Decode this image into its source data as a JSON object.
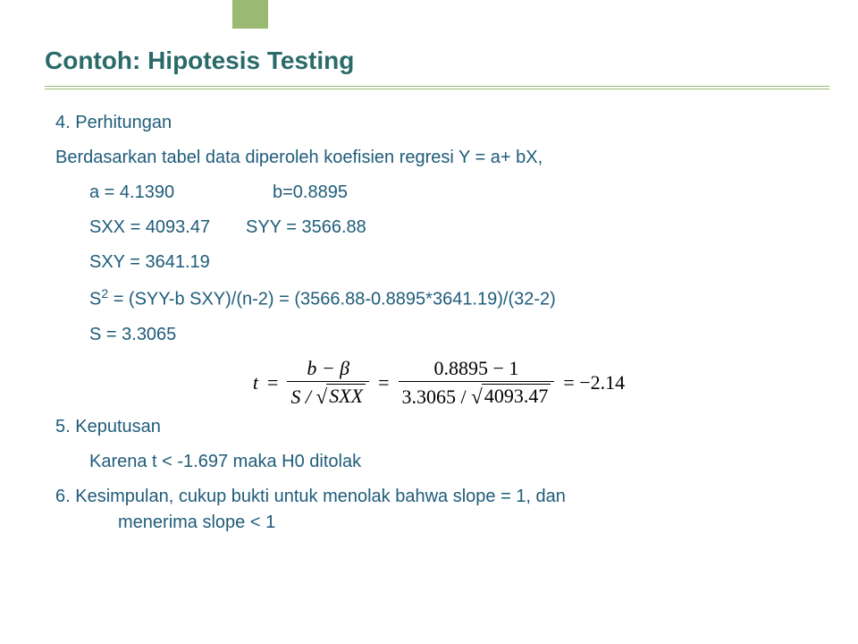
{
  "colors": {
    "accent": "#9ab973",
    "heading": "#2a6a6a",
    "body_text": "#1f5c7a",
    "formula_text": "#000000",
    "background": "#ffffff"
  },
  "typography": {
    "title_fontsize_pt": 21,
    "body_fontsize_pt": 15,
    "formula_font": "Times New Roman"
  },
  "title": "Contoh: Hipotesis Testing",
  "section4": {
    "heading": "4. Perhitungan",
    "intro": "Berdasarkan tabel data diperoleh koefisien regresi Y = a+ bX,",
    "a_label": "a = 4.1390",
    "b_label": "b=0.8895",
    "sxx": "SXX =  4093.47",
    "syy": "SYY = 3566.88",
    "sxy": "SXY = 3641.19",
    "s2_label": "S",
    "s2_exp": "2",
    "s2_rest": " = (SYY-b SXY)/(n-2) = (3566.88-0.8895*3641.19)/(32-2)",
    "s": "S = 3.3065"
  },
  "formula": {
    "lhs": "t",
    "eq": "=",
    "mid_num": "b − β",
    "mid_den_left": "S / ",
    "mid_den_rad": "SXX",
    "rhs_num": "0.8895 − 1",
    "rhs_den_left": "3.3065 / ",
    "rhs_den_rad": "4093.47",
    "result": "= −2.14"
  },
  "section5": {
    "heading": "5. Keputusan",
    "line": "Karena t < -1.697 maka H0 ditolak"
  },
  "section6": {
    "line1": "6. Kesimpulan, cukup bukti untuk menolak bahwa slope = 1, dan",
    "line2": "menerima slope < 1"
  }
}
